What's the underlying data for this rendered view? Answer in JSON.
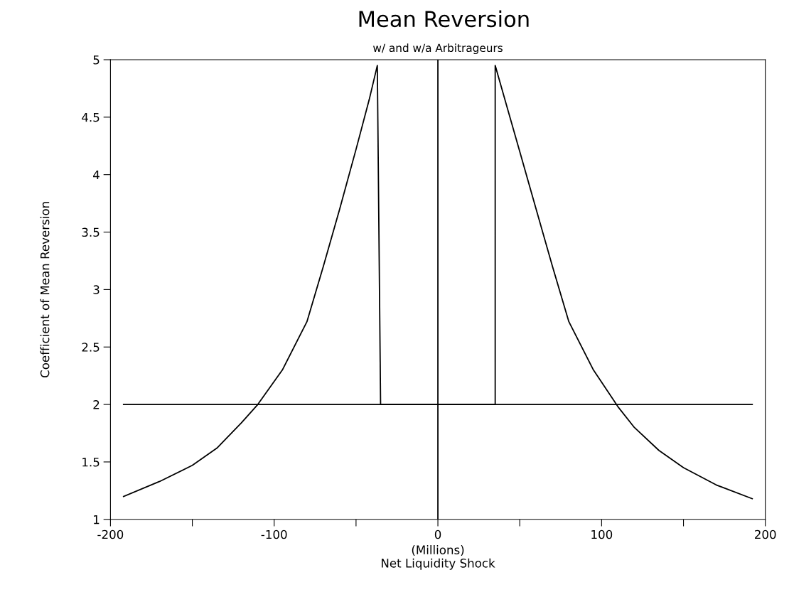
{
  "chart_data": {
    "type": "line",
    "title": "Mean Reversion",
    "subtitle": "w/ and w/a Arbitrageurs",
    "xlabel": "(Millions)\nNet Liquidity Shock",
    "ylabel": "Coefficient of Mean Reversion",
    "series": [
      {
        "color": "#000000",
        "x": [
          -192,
          -170,
          -150,
          -135,
          -120,
          -110,
          -95,
          -80,
          -70,
          -60,
          -50,
          -42,
          -37,
          -35,
          35,
          35,
          37,
          42,
          50,
          60,
          70,
          80,
          95,
          110,
          120,
          135,
          150,
          170,
          192
        ],
        "values": [
          1.2,
          1.33,
          1.47,
          1.62,
          1.84,
          2.0,
          2.3,
          2.72,
          3.2,
          3.7,
          4.22,
          4.65,
          4.95,
          2.0,
          2.0,
          4.95,
          4.85,
          4.6,
          4.2,
          3.7,
          3.2,
          2.72,
          2.3,
          1.98,
          1.8,
          1.6,
          1.45,
          1.3,
          1.18
        ]
      },
      {
        "color": "#000000",
        "x": [
          -192,
          192
        ],
        "values": [
          2.0,
          2.0
        ]
      }
    ],
    "ref_lines": [
      {
        "axis": "x",
        "value": 0,
        "color": "#000000"
      }
    ],
    "xlim": [
      -200,
      200
    ],
    "xticks": [
      -200,
      {
        "value": -150,
        "label": null
      },
      -100,
      {
        "value": -50,
        "label": null
      },
      0,
      {
        "value": 50,
        "label": null
      },
      100,
      {
        "value": 150,
        "label": null
      },
      200
    ],
    "ylim": [
      1,
      5
    ],
    "yticks": [
      1,
      1.5,
      2,
      2.5,
      3,
      3.5,
      4,
      4.5,
      5
    ],
    "grid": false,
    "marker": "none",
    "line_style": "solid"
  }
}
